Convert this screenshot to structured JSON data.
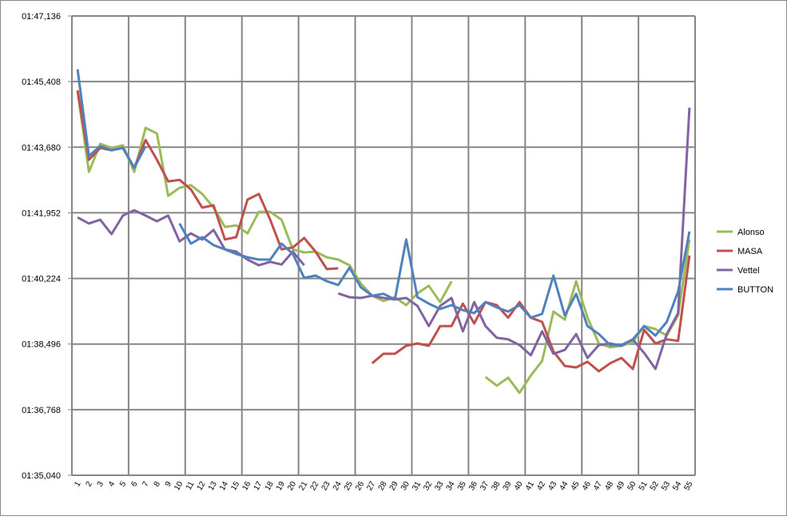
{
  "chart_data": {
    "type": "line",
    "categories": [
      "1",
      "2",
      "3",
      "4",
      "5",
      "6",
      "7",
      "8",
      "9",
      "10",
      "11",
      "12",
      "13",
      "14",
      "15",
      "16",
      "17",
      "18",
      "19",
      "20",
      "21",
      "22",
      "23",
      "24",
      "25",
      "26",
      "27",
      "28",
      "29",
      "30",
      "31",
      "32",
      "33",
      "34",
      "35",
      "36",
      "37",
      "38",
      "39",
      "40",
      "41",
      "42",
      "43",
      "44",
      "45",
      "46",
      "47",
      "48",
      "49",
      "50",
      "51",
      "52",
      "53",
      "54",
      "55"
    ],
    "ylim": [
      95.04,
      107.136
    ],
    "yticks": [
      {
        "value": 95.04,
        "label": "01:35,040"
      },
      {
        "value": 96.768,
        "label": "01:36,768"
      },
      {
        "value": 98.496,
        "label": "01:38,496"
      },
      {
        "value": 100.224,
        "label": "01:40,224"
      },
      {
        "value": 101.952,
        "label": "01:41,952"
      },
      {
        "value": 103.68,
        "label": "01:43,680"
      },
      {
        "value": 105.408,
        "label": "01:45,408"
      },
      {
        "value": 107.136,
        "label": "01:47,136"
      }
    ],
    "grid": true,
    "legend": "right",
    "series": [
      {
        "name": "Alonso",
        "color": "#9bbb59",
        "values": [
          105.14,
          103.03,
          103.77,
          103.66,
          103.73,
          103.03,
          104.19,
          104.04,
          102.4,
          102.61,
          102.68,
          102.45,
          102.09,
          101.58,
          101.62,
          101.41,
          101.98,
          101.98,
          101.77,
          100.99,
          100.91,
          100.93,
          100.78,
          100.72,
          100.57,
          100.09,
          99.77,
          99.63,
          99.73,
          99.52,
          99.83,
          100.03,
          99.6,
          100.15,
          null,
          null,
          97.63,
          97.4,
          97.61,
          97.21,
          97.67,
          98.05,
          99.35,
          99.14,
          100.15,
          99.19,
          98.51,
          98.41,
          98.45,
          98.55,
          98.97,
          98.89,
          98.72,
          99.25,
          101.25
        ]
      },
      {
        "name": "MASA",
        "color": "#c0504d",
        "values": [
          105.18,
          103.35,
          103.66,
          103.6,
          103.66,
          103.14,
          103.87,
          103.35,
          102.78,
          102.82,
          102.57,
          102.09,
          102.15,
          101.25,
          101.31,
          102.3,
          102.45,
          101.77,
          100.99,
          101.04,
          101.29,
          100.93,
          100.47,
          100.49,
          null,
          null,
          97.99,
          98.24,
          98.24,
          98.45,
          98.51,
          98.45,
          98.97,
          98.97,
          99.56,
          99.04,
          99.6,
          99.52,
          99.19,
          99.6,
          99.19,
          99.08,
          98.3,
          97.92,
          97.88,
          98.03,
          97.78,
          97.99,
          98.13,
          97.84,
          98.87,
          98.51,
          98.62,
          98.58,
          100.83
        ]
      },
      {
        "name": "Vettel",
        "color": "#8064a2",
        "values": [
          101.83,
          101.67,
          101.77,
          101.39,
          101.88,
          102.02,
          101.88,
          101.73,
          101.88,
          101.2,
          101.41,
          101.25,
          101.5,
          100.99,
          100.93,
          100.72,
          100.57,
          100.66,
          100.59,
          100.93,
          100.57,
          null,
          null,
          99.83,
          99.73,
          99.71,
          99.77,
          99.71,
          99.67,
          99.71,
          99.5,
          98.97,
          99.5,
          99.71,
          98.83,
          99.6,
          98.97,
          98.66,
          98.62,
          98.47,
          98.2,
          98.83,
          98.24,
          98.34,
          98.76,
          98.13,
          98.47,
          98.51,
          98.45,
          98.62,
          98.26,
          97.84,
          98.76,
          99.31,
          104.72
        ]
      },
      {
        "name": "BUTTON",
        "color": "#4f81bd",
        "values": [
          105.73,
          103.45,
          103.71,
          103.6,
          103.66,
          103.14,
          103.71,
          null,
          null,
          101.67,
          101.14,
          101.31,
          101.1,
          100.99,
          100.87,
          100.78,
          100.72,
          100.72,
          101.14,
          100.87,
          100.24,
          100.3,
          100.15,
          100.05,
          100.51,
          99.99,
          99.77,
          99.82,
          99.67,
          101.25,
          99.73,
          99.56,
          99.42,
          99.52,
          99.39,
          99.31,
          99.6,
          99.46,
          99.35,
          99.52,
          99.19,
          99.29,
          100.3,
          99.25,
          99.82,
          98.97,
          98.76,
          98.47,
          98.47,
          98.62,
          98.97,
          98.72,
          99.08,
          99.88,
          101.46
        ]
      }
    ]
  }
}
